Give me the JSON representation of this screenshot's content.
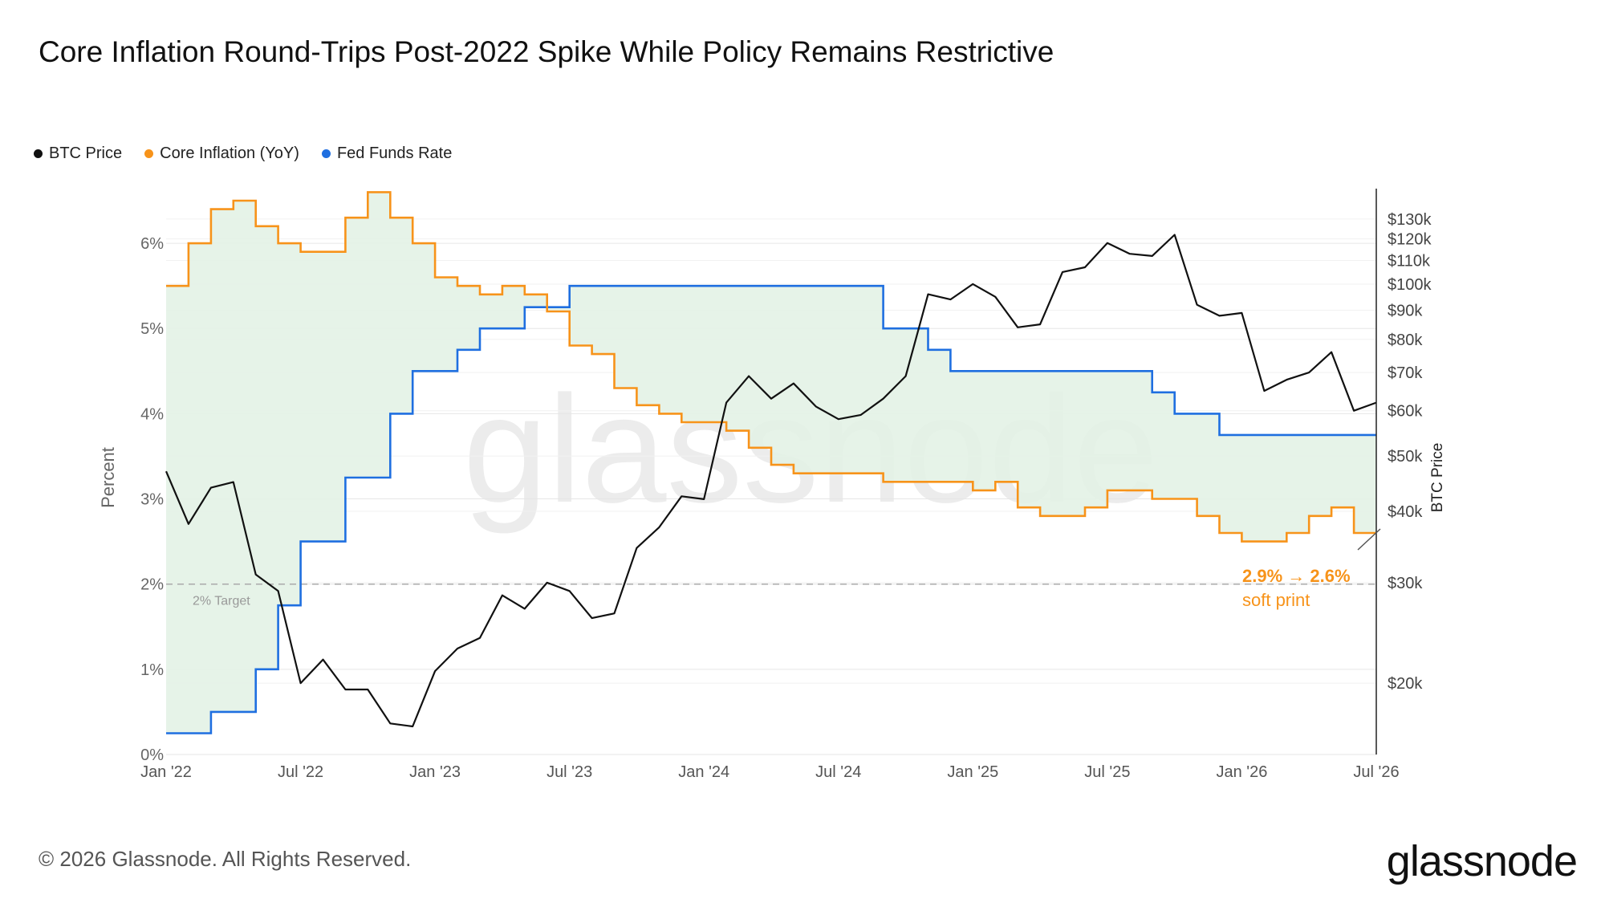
{
  "title": "Core Inflation Round-Trips Post-2022 Spike While Policy Remains Restrictive",
  "footer": {
    "copyright": "© 2026 Glassnode. All Rights Reserved.",
    "brand": "glassnode"
  },
  "watermark": "glassnode",
  "colors": {
    "btc": "#111111",
    "core": "#f7931a",
    "fed": "#1f6fe0",
    "fill": "#e3f2e6",
    "grid": "#e6e6e6",
    "target": "#aaaaaa"
  },
  "legend": [
    {
      "label": "BTC Price",
      "color": "#111111"
    },
    {
      "label": "Core Inflation (YoY)",
      "color": "#f7931a"
    },
    {
      "label": "Fed Funds Rate",
      "color": "#1f6fe0"
    }
  ],
  "chart_data": {
    "type": "line",
    "x_range": [
      "2022-01",
      "2026-07"
    ],
    "x_ticks": [
      "Jan '22",
      "Jul '22",
      "Jan '23",
      "Jul '23",
      "Jan '24",
      "Jul '24",
      "Jan '25",
      "Jul '25",
      "Jan '26",
      "Jul '26"
    ],
    "y_left": {
      "label": "Percent",
      "range": [
        0,
        6.5
      ],
      "ticks": [
        "0%",
        "1%",
        "2%",
        "3%",
        "4%",
        "5%",
        "6%"
      ]
    },
    "y_right": {
      "label": "BTC Price",
      "scale": "log",
      "range": [
        15000,
        140000
      ],
      "ticks": [
        {
          "value": 20000,
          "label": "$20k"
        },
        {
          "value": 30000,
          "label": "$30k"
        },
        {
          "value": 40000,
          "label": "$40k"
        },
        {
          "value": 50000,
          "label": "$50k"
        },
        {
          "value": 60000,
          "label": "$60k"
        },
        {
          "value": 70000,
          "label": "$70k"
        },
        {
          "value": 80000,
          "label": "$80k"
        },
        {
          "value": 90000,
          "label": "$90k"
        },
        {
          "value": 100000,
          "label": "$100k"
        },
        {
          "value": 110000,
          "label": "$110k"
        },
        {
          "value": 120000,
          "label": "$120k"
        },
        {
          "value": 130000,
          "label": "$130k"
        }
      ]
    },
    "target_line": {
      "value": 2,
      "label": "2% Target"
    },
    "annotation": {
      "line1": "2.9% → 2.6%",
      "line2": "soft print"
    },
    "fill_between": [
      "Core Inflation (YoY)",
      "Fed Funds Rate"
    ],
    "series": [
      {
        "name": "Core Inflation (YoY)",
        "axis": "left",
        "step": true,
        "x": [
          "2022-01",
          "2022-02",
          "2022-03",
          "2022-04",
          "2022-05",
          "2022-06",
          "2022-07",
          "2022-08",
          "2022-09",
          "2022-10",
          "2022-11",
          "2022-12",
          "2023-01",
          "2023-02",
          "2023-03",
          "2023-04",
          "2023-05",
          "2023-06",
          "2023-07",
          "2023-08",
          "2023-09",
          "2023-10",
          "2023-11",
          "2023-12",
          "2024-01",
          "2024-02",
          "2024-03",
          "2024-04",
          "2024-05",
          "2024-06",
          "2024-07",
          "2024-08",
          "2024-09",
          "2024-10",
          "2024-11",
          "2024-12",
          "2025-01",
          "2025-02",
          "2025-03",
          "2025-04",
          "2025-05",
          "2025-06",
          "2025-07",
          "2025-08",
          "2025-09",
          "2025-10",
          "2025-11",
          "2025-12",
          "2026-01",
          "2026-02",
          "2026-03",
          "2026-04",
          "2026-05",
          "2026-06",
          "2026-07"
        ],
        "values": [
          5.5,
          6.0,
          6.4,
          6.5,
          6.2,
          6.0,
          5.9,
          5.9,
          6.3,
          6.6,
          6.3,
          6.0,
          5.6,
          5.5,
          5.4,
          5.5,
          5.4,
          5.2,
          4.8,
          4.7,
          4.3,
          4.1,
          4.0,
          3.9,
          3.9,
          3.8,
          3.6,
          3.4,
          3.3,
          3.3,
          3.3,
          3.3,
          3.2,
          3.2,
          3.2,
          3.2,
          3.1,
          3.2,
          2.9,
          2.8,
          2.8,
          2.9,
          3.1,
          3.1,
          3.0,
          3.0,
          2.8,
          2.6,
          2.5,
          2.5,
          2.6,
          2.8,
          2.9,
          2.6,
          2.6
        ]
      },
      {
        "name": "Fed Funds Rate",
        "axis": "left",
        "step": true,
        "x": [
          "2022-01",
          "2022-03",
          "2022-05",
          "2022-06",
          "2022-07",
          "2022-09",
          "2022-11",
          "2022-12",
          "2023-02",
          "2023-03",
          "2023-05",
          "2023-07",
          "2023-08",
          "2024-09",
          "2024-11",
          "2024-12",
          "2025-09",
          "2025-10",
          "2025-12",
          "2026-07"
        ],
        "values": [
          0.25,
          0.5,
          1.0,
          1.75,
          2.5,
          3.25,
          4.0,
          4.5,
          4.75,
          5.0,
          5.25,
          5.5,
          5.5,
          5.0,
          4.75,
          4.5,
          4.25,
          4.0,
          3.75,
          3.75
        ]
      },
      {
        "name": "BTC Price",
        "axis": "right",
        "x": [
          "2022-01",
          "2022-02",
          "2022-03",
          "2022-04",
          "2022-05",
          "2022-06",
          "2022-07",
          "2022-08",
          "2022-09",
          "2022-10",
          "2022-11",
          "2022-12",
          "2023-01",
          "2023-02",
          "2023-03",
          "2023-04",
          "2023-05",
          "2023-06",
          "2023-07",
          "2023-08",
          "2023-09",
          "2023-10",
          "2023-11",
          "2023-12",
          "2024-01",
          "2024-02",
          "2024-03",
          "2024-04",
          "2024-05",
          "2024-06",
          "2024-07",
          "2024-08",
          "2024-09",
          "2024-10",
          "2024-11",
          "2024-12",
          "2025-01",
          "2025-02",
          "2025-03",
          "2025-04",
          "2025-05",
          "2025-06",
          "2025-07",
          "2025-08",
          "2025-09",
          "2025-10",
          "2025-11",
          "2025-12",
          "2026-01",
          "2026-02",
          "2026-03",
          "2026-04",
          "2026-05",
          "2026-06",
          "2026-07"
        ],
        "values": [
          47000,
          38000,
          44000,
          45000,
          31000,
          29000,
          20000,
          22000,
          19500,
          19500,
          17000,
          16800,
          21000,
          23000,
          24000,
          28500,
          27000,
          30000,
          29000,
          26000,
          26500,
          34500,
          37500,
          42500,
          42000,
          62000,
          69000,
          63000,
          67000,
          61000,
          58000,
          59000,
          63000,
          69000,
          96000,
          94000,
          100000,
          95000,
          84000,
          85000,
          105000,
          107000,
          118000,
          113000,
          112000,
          122000,
          92000,
          88000,
          89000,
          65000,
          68000,
          70000,
          76000,
          60000,
          62000
        ]
      }
    ]
  }
}
